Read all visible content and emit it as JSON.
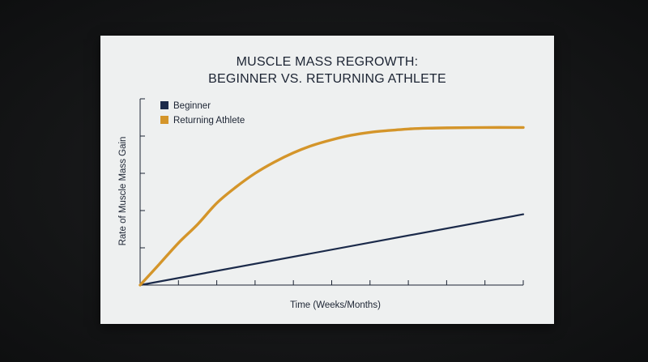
{
  "chart_data": {
    "type": "line",
    "title_lines": [
      "MUSCLE MASS REGROWTH:",
      "BEGINNER VS. RETURNING ATHLETE"
    ],
    "xlabel": "Time (Weeks/Months)",
    "ylabel": "Rate of Muscle Mass Gain",
    "xlim": [
      0,
      10
    ],
    "ylim": [
      0,
      5
    ],
    "x_ticks": 10,
    "y_ticks": 5,
    "legend_position": "top-left",
    "grid": false,
    "series": [
      {
        "name": "Beginner",
        "color": "#1b2a4a",
        "points": [
          [
            0,
            0
          ],
          [
            10,
            1.9
          ]
        ]
      },
      {
        "name": "Returning Athlete",
        "color": "#d4952a",
        "points": [
          [
            0,
            0
          ],
          [
            0.5,
            0.56
          ],
          [
            1,
            1.13
          ],
          [
            1.5,
            1.63
          ],
          [
            2,
            2.2
          ],
          [
            2.5,
            2.63
          ],
          [
            3,
            3.0
          ],
          [
            3.5,
            3.3
          ],
          [
            4,
            3.55
          ],
          [
            4.5,
            3.75
          ],
          [
            5,
            3.9
          ],
          [
            5.5,
            4.02
          ],
          [
            6,
            4.1
          ],
          [
            6.5,
            4.15
          ],
          [
            7,
            4.19
          ],
          [
            7.5,
            4.21
          ],
          [
            8,
            4.22
          ],
          [
            9,
            4.23
          ],
          [
            10,
            4.23
          ]
        ]
      }
    ]
  }
}
